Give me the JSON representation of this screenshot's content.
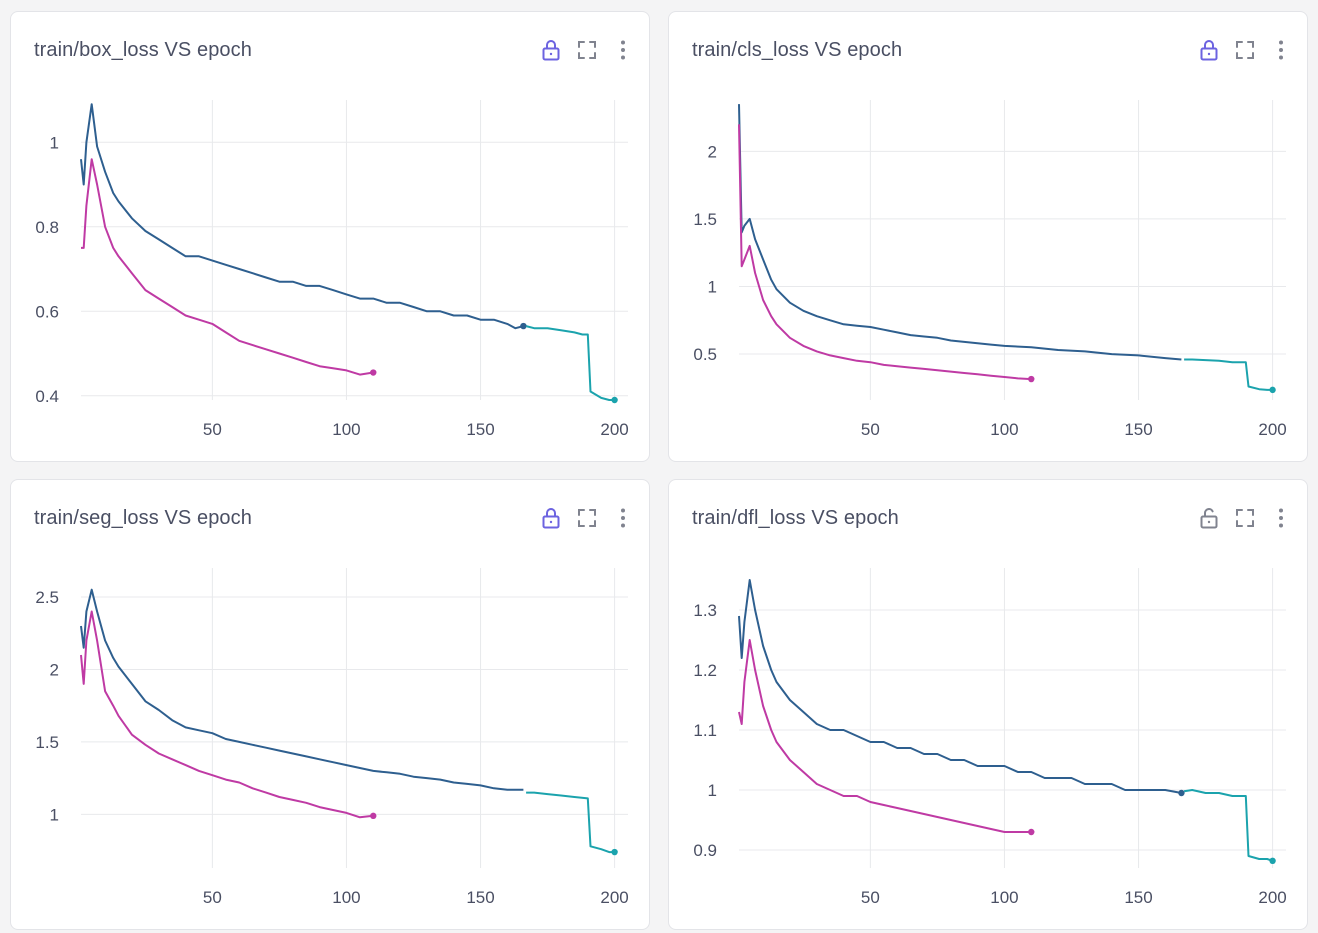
{
  "colors": {
    "run_blue": "#2e5f8f",
    "run_teal": "#1ba3ad",
    "run_magenta": "#bf3aa4",
    "grid": "#e8e9ec",
    "lock_active": "#6c63e0",
    "icon_gray": "#80838f"
  },
  "cards": [
    {
      "title": "train/box_loss VS epoch",
      "lock_icon": "lock-closed",
      "lock_active": true
    },
    {
      "title": "train/cls_loss VS epoch",
      "lock_icon": "lock-closed",
      "lock_active": true
    },
    {
      "title": "train/seg_loss VS epoch",
      "lock_icon": "lock-closed",
      "lock_active": true
    },
    {
      "title": "train/dfl_loss VS epoch",
      "lock_icon": "lock-open",
      "lock_active": false
    }
  ],
  "chart_data": [
    {
      "type": "line",
      "title": "train/box_loss VS epoch",
      "xlim": [
        1,
        205
      ],
      "ylim": [
        0.39,
        1.1
      ],
      "xticks": [
        "50",
        "100",
        "150",
        "200"
      ],
      "yticks": [
        "0.4",
        "0.6",
        "0.8",
        "1"
      ],
      "series": [
        {
          "color": "#2e5f8f",
          "marker_end": true,
          "x": [
            1,
            2,
            3,
            5,
            7,
            10,
            13,
            15,
            20,
            25,
            30,
            35,
            40,
            45,
            50,
            55,
            60,
            65,
            70,
            75,
            80,
            85,
            90,
            95,
            100,
            105,
            110,
            115,
            120,
            125,
            130,
            135,
            140,
            145,
            150,
            155,
            160,
            163,
            166
          ],
          "y": [
            0.96,
            0.9,
            1.0,
            1.09,
            0.99,
            0.93,
            0.88,
            0.86,
            0.82,
            0.79,
            0.77,
            0.75,
            0.73,
            0.73,
            0.72,
            0.71,
            0.7,
            0.69,
            0.68,
            0.67,
            0.67,
            0.66,
            0.66,
            0.65,
            0.64,
            0.63,
            0.63,
            0.62,
            0.62,
            0.61,
            0.6,
            0.6,
            0.59,
            0.59,
            0.58,
            0.58,
            0.57,
            0.56,
            0.565
          ]
        },
        {
          "color": "#1ba3ad",
          "marker_end": true,
          "x": [
            167,
            170,
            175,
            180,
            185,
            188,
            190,
            191,
            195,
            198,
            200
          ],
          "y": [
            0.565,
            0.56,
            0.56,
            0.555,
            0.55,
            0.545,
            0.545,
            0.41,
            0.395,
            0.39,
            0.39
          ]
        },
        {
          "color": "#bf3aa4",
          "marker_end": true,
          "x": [
            1,
            2,
            3,
            5,
            7,
            10,
            13,
            15,
            20,
            25,
            30,
            35,
            40,
            45,
            50,
            55,
            60,
            65,
            70,
            75,
            80,
            85,
            90,
            95,
            100,
            105,
            110
          ],
          "y": [
            0.75,
            0.75,
            0.85,
            0.96,
            0.9,
            0.8,
            0.75,
            0.73,
            0.69,
            0.65,
            0.63,
            0.61,
            0.59,
            0.58,
            0.57,
            0.55,
            0.53,
            0.52,
            0.51,
            0.5,
            0.49,
            0.48,
            0.47,
            0.465,
            0.46,
            0.45,
            0.455
          ]
        }
      ]
    },
    {
      "type": "line",
      "title": "train/cls_loss VS epoch",
      "xlim": [
        1,
        205
      ],
      "ylim": [
        0.16,
        2.38
      ],
      "xticks": [
        "50",
        "100",
        "150",
        "200"
      ],
      "yticks": [
        "0.5",
        "1",
        "1.5",
        "2"
      ],
      "series": [
        {
          "color": "#2e5f8f",
          "marker_end": false,
          "x": [
            1,
            2,
            3,
            5,
            7,
            10,
            13,
            15,
            20,
            25,
            30,
            35,
            40,
            45,
            50,
            55,
            60,
            65,
            70,
            75,
            80,
            85,
            90,
            95,
            100,
            110,
            120,
            130,
            140,
            150,
            160,
            166
          ],
          "y": [
            2.35,
            1.4,
            1.45,
            1.5,
            1.35,
            1.2,
            1.05,
            0.98,
            0.88,
            0.82,
            0.78,
            0.75,
            0.72,
            0.71,
            0.7,
            0.68,
            0.66,
            0.64,
            0.63,
            0.62,
            0.6,
            0.59,
            0.58,
            0.57,
            0.56,
            0.55,
            0.53,
            0.52,
            0.5,
            0.49,
            0.47,
            0.46
          ]
        },
        {
          "color": "#1ba3ad",
          "marker_end": true,
          "x": [
            167,
            170,
            175,
            180,
            185,
            190,
            191,
            195,
            198,
            200
          ],
          "y": [
            0.46,
            0.46,
            0.455,
            0.45,
            0.44,
            0.44,
            0.26,
            0.24,
            0.235,
            0.235
          ]
        },
        {
          "color": "#bf3aa4",
          "marker_end": true,
          "x": [
            1,
            2,
            3,
            5,
            7,
            10,
            13,
            15,
            20,
            25,
            30,
            35,
            40,
            45,
            50,
            55,
            60,
            65,
            70,
            75,
            80,
            85,
            90,
            95,
            100,
            105,
            110
          ],
          "y": [
            2.2,
            1.15,
            1.2,
            1.3,
            1.1,
            0.9,
            0.78,
            0.72,
            0.62,
            0.56,
            0.52,
            0.49,
            0.47,
            0.45,
            0.44,
            0.42,
            0.41,
            0.4,
            0.39,
            0.38,
            0.37,
            0.36,
            0.35,
            0.34,
            0.33,
            0.32,
            0.315
          ]
        }
      ]
    },
    {
      "type": "line",
      "title": "train/seg_loss VS epoch",
      "xlim": [
        1,
        205
      ],
      "ylim": [
        0.63,
        2.7
      ],
      "xticks": [
        "50",
        "100",
        "150",
        "200"
      ],
      "yticks": [
        "1",
        "1.5",
        "2",
        "2.5"
      ],
      "series": [
        {
          "color": "#2e5f8f",
          "marker_end": false,
          "x": [
            1,
            2,
            3,
            5,
            7,
            10,
            13,
            15,
            20,
            25,
            30,
            35,
            40,
            45,
            50,
            55,
            60,
            65,
            70,
            75,
            80,
            85,
            90,
            95,
            100,
            105,
            110,
            115,
            120,
            125,
            130,
            135,
            140,
            145,
            150,
            155,
            160,
            166
          ],
          "y": [
            2.3,
            2.15,
            2.4,
            2.55,
            2.4,
            2.2,
            2.08,
            2.02,
            1.9,
            1.78,
            1.72,
            1.65,
            1.6,
            1.58,
            1.56,
            1.52,
            1.5,
            1.48,
            1.46,
            1.44,
            1.42,
            1.4,
            1.38,
            1.36,
            1.34,
            1.32,
            1.3,
            1.29,
            1.28,
            1.26,
            1.25,
            1.24,
            1.22,
            1.21,
            1.2,
            1.18,
            1.17,
            1.17
          ]
        },
        {
          "color": "#1ba3ad",
          "marker_end": true,
          "x": [
            167,
            170,
            175,
            180,
            185,
            190,
            191,
            195,
            198,
            200
          ],
          "y": [
            1.15,
            1.15,
            1.14,
            1.13,
            1.12,
            1.11,
            0.78,
            0.76,
            0.74,
            0.74
          ]
        },
        {
          "color": "#bf3aa4",
          "marker_end": true,
          "x": [
            1,
            2,
            3,
            5,
            7,
            10,
            13,
            15,
            20,
            25,
            30,
            35,
            40,
            45,
            50,
            55,
            60,
            65,
            70,
            75,
            80,
            85,
            90,
            95,
            100,
            105,
            110
          ],
          "y": [
            2.1,
            1.9,
            2.2,
            2.4,
            2.2,
            1.85,
            1.75,
            1.68,
            1.55,
            1.48,
            1.42,
            1.38,
            1.34,
            1.3,
            1.27,
            1.24,
            1.22,
            1.18,
            1.15,
            1.12,
            1.1,
            1.08,
            1.05,
            1.03,
            1.01,
            0.98,
            0.99
          ]
        }
      ]
    },
    {
      "type": "line",
      "title": "train/dfl_loss VS epoch",
      "xlim": [
        1,
        205
      ],
      "ylim": [
        0.87,
        1.37
      ],
      "xticks": [
        "50",
        "100",
        "150",
        "200"
      ],
      "yticks": [
        "0.9",
        "1",
        "1.1",
        "1.2",
        "1.3"
      ],
      "series": [
        {
          "color": "#2e5f8f",
          "marker_end": true,
          "x": [
            1,
            2,
            3,
            5,
            7,
            10,
            13,
            15,
            20,
            25,
            30,
            35,
            40,
            45,
            50,
            55,
            60,
            65,
            70,
            75,
            80,
            85,
            90,
            95,
            100,
            105,
            110,
            115,
            120,
            125,
            130,
            135,
            140,
            145,
            150,
            155,
            160,
            166
          ],
          "y": [
            1.29,
            1.22,
            1.28,
            1.35,
            1.3,
            1.24,
            1.2,
            1.18,
            1.15,
            1.13,
            1.11,
            1.1,
            1.1,
            1.09,
            1.08,
            1.08,
            1.07,
            1.07,
            1.06,
            1.06,
            1.05,
            1.05,
            1.04,
            1.04,
            1.04,
            1.03,
            1.03,
            1.02,
            1.02,
            1.02,
            1.01,
            1.01,
            1.01,
            1.0,
            1.0,
            1.0,
            1.0,
            0.995
          ]
        },
        {
          "color": "#1ba3ad",
          "marker_end": true,
          "x": [
            167,
            170,
            175,
            180,
            185,
            190,
            191,
            195,
            198,
            200
          ],
          "y": [
            0.998,
            1.0,
            0.995,
            0.995,
            0.99,
            0.99,
            0.89,
            0.885,
            0.885,
            0.882
          ]
        },
        {
          "color": "#bf3aa4",
          "marker_end": true,
          "x": [
            1,
            2,
            3,
            5,
            7,
            10,
            13,
            15,
            20,
            25,
            30,
            35,
            40,
            45,
            50,
            55,
            60,
            65,
            70,
            75,
            80,
            85,
            90,
            95,
            100,
            105,
            110
          ],
          "y": [
            1.13,
            1.11,
            1.18,
            1.25,
            1.2,
            1.14,
            1.1,
            1.08,
            1.05,
            1.03,
            1.01,
            1.0,
            0.99,
            0.99,
            0.98,
            0.975,
            0.97,
            0.965,
            0.96,
            0.955,
            0.95,
            0.945,
            0.94,
            0.935,
            0.93,
            0.93,
            0.93
          ]
        }
      ]
    }
  ]
}
